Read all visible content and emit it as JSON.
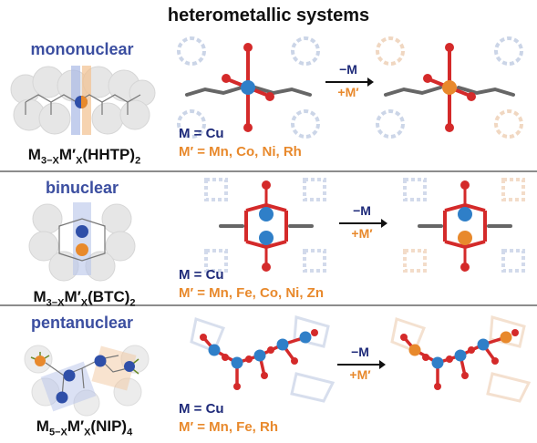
{
  "title": "heterometallic systems",
  "colors": {
    "metal_M": "#2f7fc8",
    "metal_Mprime": "#e8892c",
    "oxygen": "#d42a2a",
    "carbon": "#666666",
    "label_blue": "#3b4ea0",
    "text_orange": "#e8892c"
  },
  "rows": [
    {
      "label": "mononuclear",
      "formula": {
        "m": "M",
        "m_sub": "3−X",
        "mp": "M′",
        "mp_sub": "X",
        "ligand": "(HHTP)",
        "ligand_sub": "2"
      },
      "m_def": "M = Cu",
      "mp_def": "M′ = Mn, Co, Ni, Rh",
      "arrow_minus": "−M",
      "arrow_plus": "+M′"
    },
    {
      "label": "binuclear",
      "formula": {
        "m": "M",
        "m_sub": "3−X",
        "mp": "M′",
        "mp_sub": "X",
        "ligand": "(BTC)",
        "ligand_sub": "2"
      },
      "m_def": "M = Cu",
      "mp_def": "M′ = Mn, Fe, Co, Ni, Zn",
      "arrow_minus": "−M",
      "arrow_plus": "+M′"
    },
    {
      "label": "pentanuclear",
      "formula": {
        "m": "M",
        "m_sub": "5−X",
        "mp": "M′",
        "mp_sub": "X",
        "ligand": "(NIP)",
        "ligand_sub": "4"
      },
      "m_def": "M = Cu",
      "mp_def": "M′ = Mn, Fe, Rh",
      "arrow_minus": "−M",
      "arrow_plus": "+M′"
    }
  ]
}
